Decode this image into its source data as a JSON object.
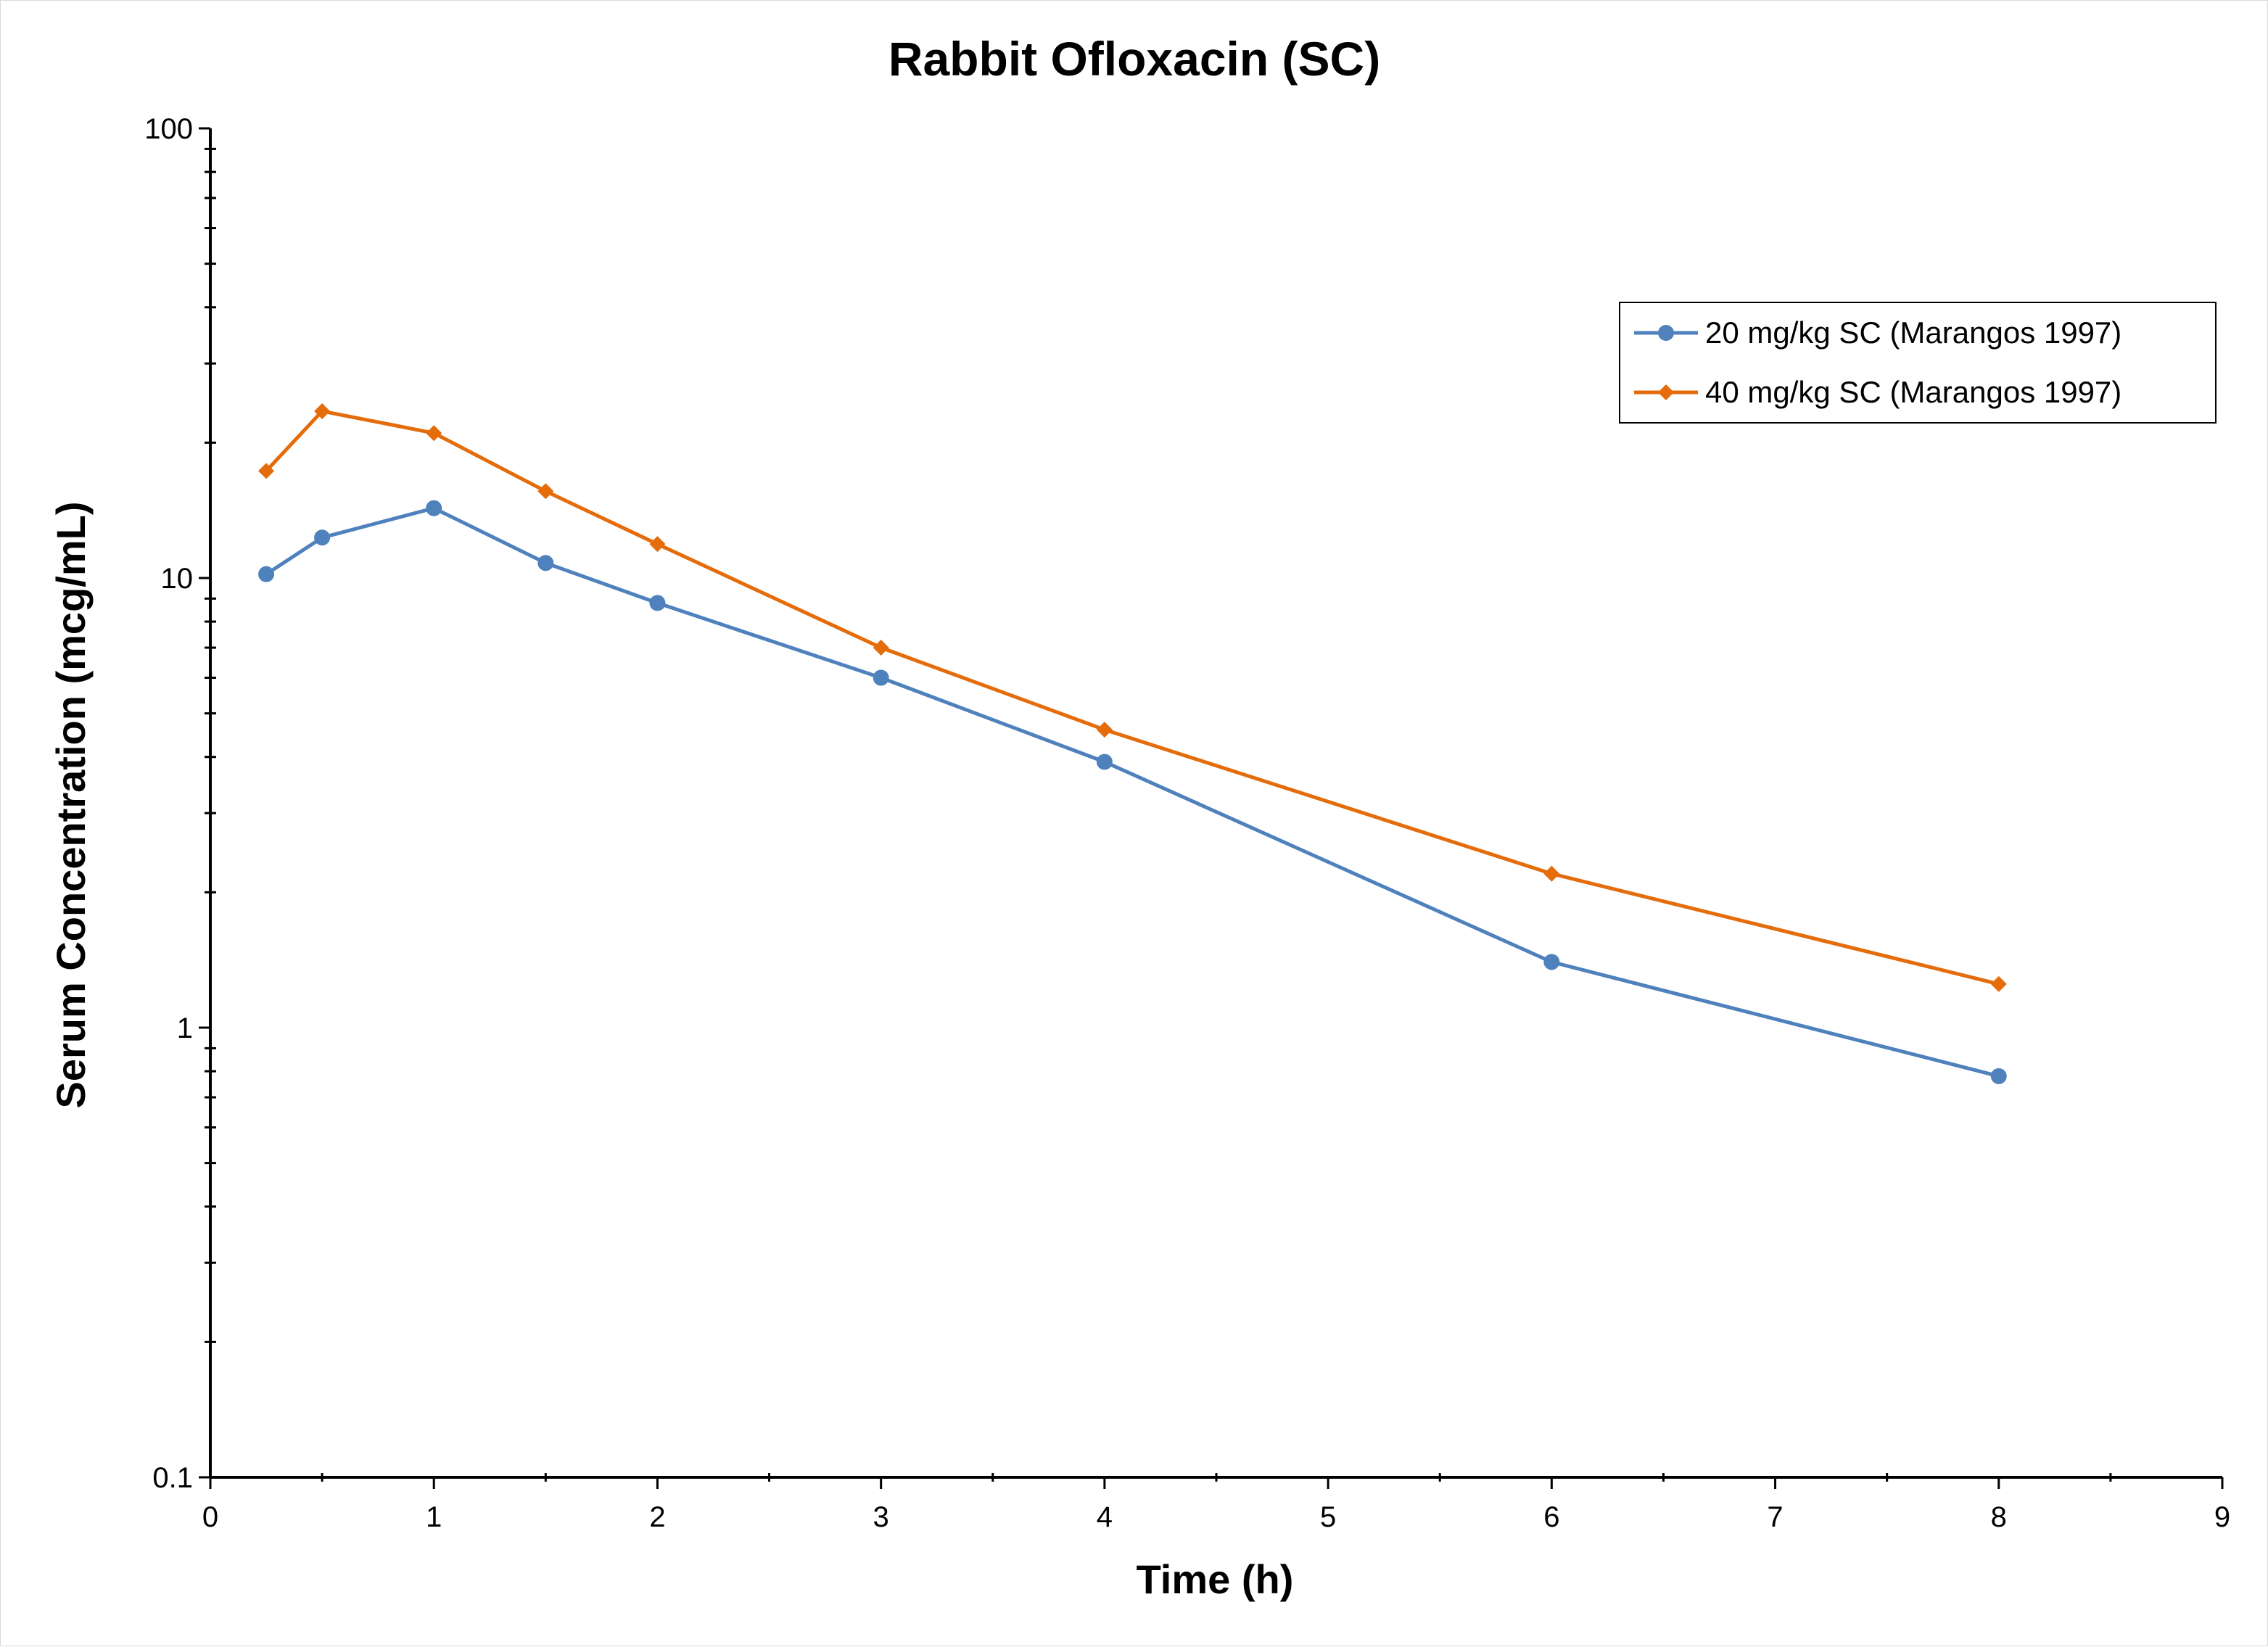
{
  "chart_data": {
    "type": "line",
    "title": "Rabbit Ofloxacin (SC)",
    "xlabel": "Time (h)",
    "ylabel": "Serum Concentration (mcg/mL)",
    "xlim": [
      0,
      9
    ],
    "ylim": [
      0.1,
      100
    ],
    "yscale": "log",
    "x_ticks": [
      "0",
      "1",
      "2",
      "3",
      "4",
      "5",
      "6",
      "7",
      "8",
      "9"
    ],
    "y_ticks": [
      "0.1",
      "1",
      "10",
      "100"
    ],
    "grid": false,
    "legend_position": "top-right",
    "series": [
      {
        "name": "20 mg/kg SC (Marangos 1997)",
        "color": "#4f81bd",
        "marker": "circle",
        "x": [
          0.25,
          0.5,
          1,
          1.5,
          2,
          3,
          4,
          6,
          8
        ],
        "y": [
          10.2,
          12.3,
          14.3,
          10.8,
          8.8,
          6.0,
          3.9,
          1.4,
          0.78
        ]
      },
      {
        "name": "40 mg/kg SC (Marangos 1997)",
        "color": "#e46c0a",
        "marker": "diamond",
        "x": [
          0.25,
          0.5,
          1,
          1.5,
          2,
          3,
          4,
          6,
          8
        ],
        "y": [
          17.3,
          23.5,
          21.0,
          15.6,
          11.9,
          7.0,
          4.6,
          2.2,
          1.25
        ]
      }
    ]
  }
}
